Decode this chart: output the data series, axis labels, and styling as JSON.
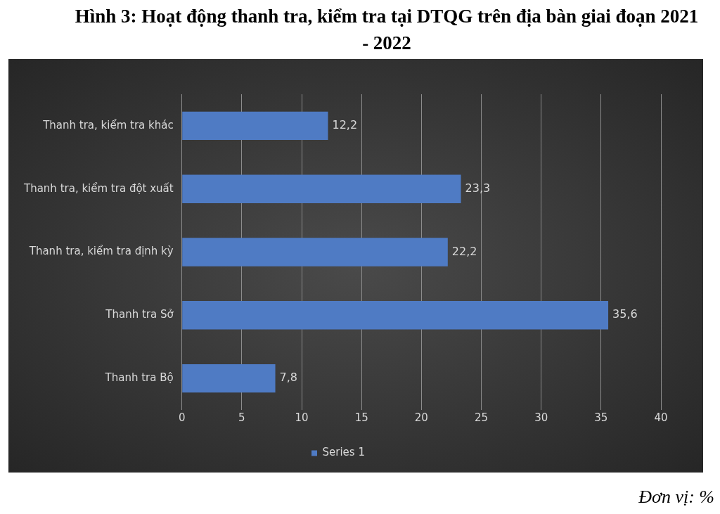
{
  "chart_data": {
    "type": "bar",
    "orientation": "horizontal",
    "title": "Hình 3: Hoạt động thanh tra, kiểm tra tại DTQG trên địa bàn giai đoạn 2021 - 2022",
    "categories": [
      "Thanh tra, kiểm tra khác",
      "Thanh tra, kiểm tra đột xuất",
      "Thanh tra, kiểm tra định kỳ",
      "Thanh tra Sở",
      "Thanh tra Bộ"
    ],
    "series": [
      {
        "name": "Series 1",
        "color": "#4f7bc4",
        "values": [
          12.2,
          23.3,
          22.2,
          35.6,
          7.8
        ],
        "value_labels": [
          "12,2",
          "23,3",
          "22,2",
          "35,6",
          "7,8"
        ]
      }
    ],
    "xlim": [
      0,
      40
    ],
    "xticks": [
      0,
      5,
      10,
      15,
      20,
      25,
      30,
      35,
      40
    ],
    "grid": "x",
    "legend": "bottom",
    "annotations": [
      "Đơn vị: %"
    ]
  }
}
